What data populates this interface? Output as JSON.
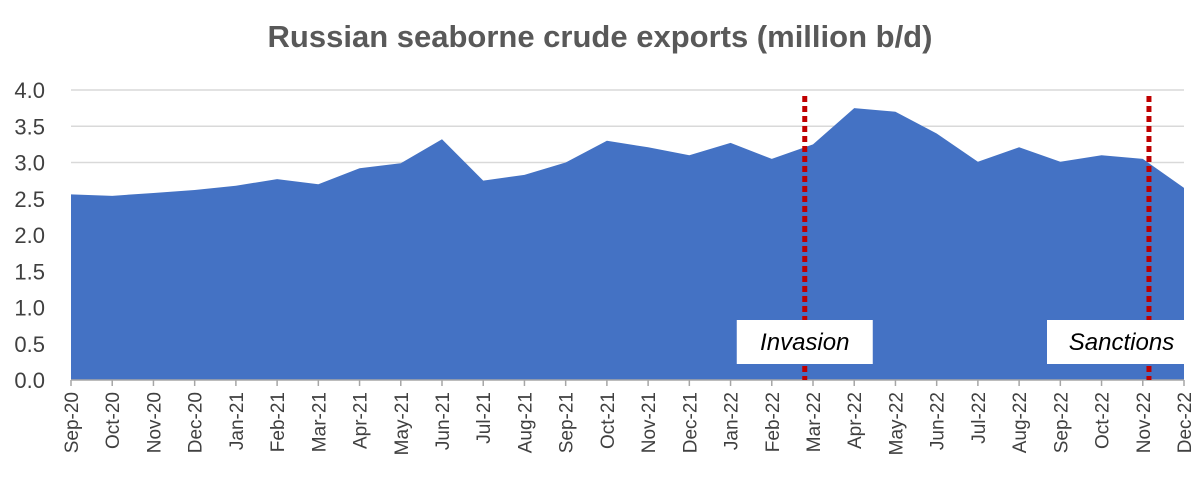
{
  "chart_data": {
    "type": "area",
    "title": "Russian seaborne crude exports (million b/d)",
    "xlabel": "",
    "ylabel": "",
    "ylim": [
      0,
      4.0
    ],
    "yticks": [
      "0.0",
      "0.5",
      "1.0",
      "1.5",
      "2.0",
      "2.5",
      "3.0",
      "3.5",
      "4.0"
    ],
    "grid": true,
    "categories": [
      "Sep-20",
      "Oct-20",
      "Nov-20",
      "Dec-20",
      "Jan-21",
      "Feb-21",
      "Mar-21",
      "Apr-21",
      "May-21",
      "Jun-21",
      "Jul-21",
      "Aug-21",
      "Sep-21",
      "Oct-21",
      "Nov-21",
      "Dec-21",
      "Jan-22",
      "Feb-22",
      "Mar-22",
      "Apr-22",
      "May-22",
      "Jun-22",
      "Jul-22",
      "Aug-22",
      "Sep-22",
      "Oct-22",
      "Nov-22",
      "Dec-22"
    ],
    "values": [
      2.56,
      2.54,
      2.58,
      2.62,
      2.68,
      2.77,
      2.7,
      2.92,
      2.99,
      3.32,
      2.75,
      2.83,
      3.0,
      3.3,
      3.21,
      3.1,
      3.27,
      3.05,
      3.25,
      3.75,
      3.7,
      3.4,
      3.01,
      3.21,
      3.01,
      3.1,
      3.05,
      2.65
    ],
    "area_color": "#4472C4",
    "annotations": [
      {
        "label": "Invasion",
        "x": "Mar-22",
        "x_offset": -0.2,
        "color": "#C00000"
      },
      {
        "label": "Sanctions",
        "x": "Nov-22",
        "x_offset": 0.15,
        "color": "#C00000"
      }
    ]
  }
}
